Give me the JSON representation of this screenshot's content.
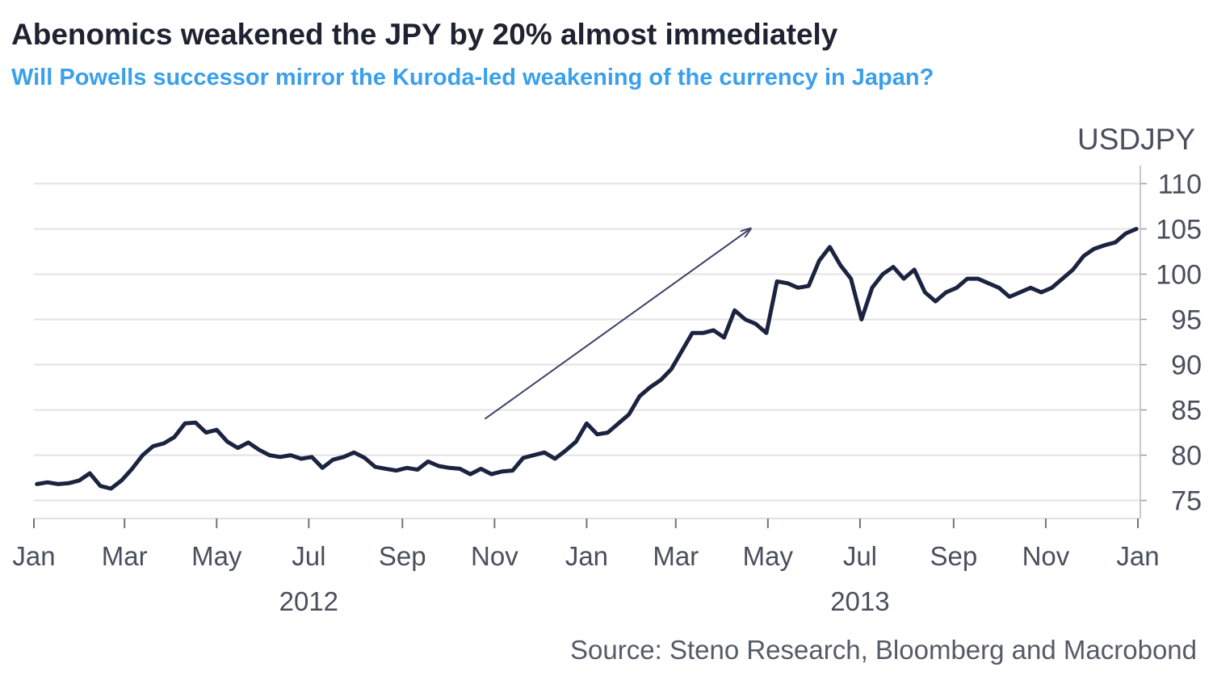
{
  "title": "Abenomics weakened the JPY by 20% almost immediately",
  "subtitle": "Will Powells successor mirror the Kuroda-led weakening of the currency in Japan?",
  "source": "Source: Steno Research, Bloomberg and Macrobond",
  "colors": {
    "line": "#1b2340",
    "grid": "#e3e3e6",
    "subtitle": "#3aa0ea",
    "arrow": "#3a4266"
  },
  "chart_data": {
    "type": "line",
    "unit_label": "USDJPY",
    "y_axis_position": "right",
    "ylim": [
      73,
      112
    ],
    "yticks": [
      75,
      80,
      85,
      90,
      95,
      100,
      105,
      110
    ],
    "grid": true,
    "xlim": [
      "2012-01-01",
      "2014-01-01"
    ],
    "x_ticks": [
      {
        "date": "2012-01-01",
        "label": "Jan"
      },
      {
        "date": "2012-03-01",
        "label": "Mar"
      },
      {
        "date": "2012-05-01",
        "label": "May"
      },
      {
        "date": "2012-07-01",
        "label": "Jul"
      },
      {
        "date": "2012-09-01",
        "label": "Sep"
      },
      {
        "date": "2012-11-01",
        "label": "Nov"
      },
      {
        "date": "2013-01-01",
        "label": "Jan"
      },
      {
        "date": "2013-03-01",
        "label": "Mar"
      },
      {
        "date": "2013-05-01",
        "label": "May"
      },
      {
        "date": "2013-07-01",
        "label": "Jul"
      },
      {
        "date": "2013-09-01",
        "label": "Sep"
      },
      {
        "date": "2013-11-01",
        "label": "Nov"
      },
      {
        "date": "2014-01-01",
        "label": "Jan"
      }
    ],
    "year_labels": [
      {
        "date": "2012-07-01",
        "label": "2012"
      },
      {
        "date": "2013-07-01",
        "label": "2013"
      }
    ],
    "annotation_arrow": {
      "from": [
        "2012-11-01",
        84
      ],
      "to": [
        "2013-05-01",
        105
      ]
    },
    "series": [
      {
        "x": [
          "2012-01-03",
          "2012-01-10",
          "2012-01-17",
          "2012-01-24",
          "2012-01-31",
          "2012-02-07",
          "2012-02-14",
          "2012-02-21",
          "2012-02-28",
          "2012-03-06",
          "2012-03-13",
          "2012-03-20",
          "2012-03-27",
          "2012-04-03",
          "2012-04-10",
          "2012-04-17",
          "2012-04-24",
          "2012-05-01",
          "2012-05-08",
          "2012-05-15",
          "2012-05-22",
          "2012-05-29",
          "2012-06-05",
          "2012-06-12",
          "2012-06-19",
          "2012-06-26",
          "2012-07-03",
          "2012-07-10",
          "2012-07-17",
          "2012-07-24",
          "2012-07-31",
          "2012-08-07",
          "2012-08-14",
          "2012-08-21",
          "2012-08-28",
          "2012-09-04",
          "2012-09-11",
          "2012-09-18",
          "2012-09-25",
          "2012-10-02",
          "2012-10-09",
          "2012-10-16",
          "2012-10-23",
          "2012-10-30",
          "2012-11-06",
          "2012-11-13",
          "2012-11-20",
          "2012-11-27",
          "2012-12-04",
          "2012-12-11",
          "2012-12-18",
          "2012-12-25",
          "2013-01-01",
          "2013-01-08",
          "2013-01-15",
          "2013-01-22",
          "2013-01-29",
          "2013-02-05",
          "2013-02-12",
          "2013-02-19",
          "2013-02-26",
          "2013-03-05",
          "2013-03-12",
          "2013-03-19",
          "2013-03-26",
          "2013-04-02",
          "2013-04-09",
          "2013-04-16",
          "2013-04-23",
          "2013-04-30",
          "2013-05-07",
          "2013-05-14",
          "2013-05-21",
          "2013-05-28",
          "2013-06-04",
          "2013-06-11",
          "2013-06-18",
          "2013-06-25",
          "2013-07-02",
          "2013-07-09",
          "2013-07-16",
          "2013-07-23",
          "2013-07-30",
          "2013-08-06",
          "2013-08-13",
          "2013-08-20",
          "2013-08-27",
          "2013-09-03",
          "2013-09-10",
          "2013-09-17",
          "2013-09-24",
          "2013-10-01",
          "2013-10-08",
          "2013-10-15",
          "2013-10-22",
          "2013-10-29",
          "2013-11-05",
          "2013-11-12",
          "2013-11-19",
          "2013-11-26",
          "2013-12-03",
          "2013-12-10",
          "2013-12-17",
          "2013-12-24",
          "2013-12-31"
        ],
        "y": [
          76.8,
          77.0,
          76.8,
          76.9,
          77.2,
          78.0,
          76.6,
          76.3,
          77.2,
          78.5,
          80.0,
          81.0,
          81.3,
          82.0,
          83.5,
          83.6,
          82.5,
          82.8,
          81.5,
          80.8,
          81.4,
          80.6,
          80.0,
          79.8,
          80.0,
          79.6,
          79.8,
          78.6,
          79.5,
          79.8,
          80.3,
          79.7,
          78.7,
          78.5,
          78.3,
          78.6,
          78.4,
          79.3,
          78.8,
          78.6,
          78.5,
          77.9,
          78.5,
          77.9,
          78.2,
          78.3,
          79.7,
          80.0,
          80.3,
          79.6,
          80.5,
          81.5,
          83.5,
          82.3,
          82.5,
          83.5,
          84.5,
          86.5,
          87.5,
          88.3,
          89.5,
          91.5,
          93.5,
          93.5,
          93.8,
          93.0,
          96.0,
          95.0,
          94.5,
          93.5,
          99.2,
          99.0,
          98.5,
          98.7,
          101.5,
          103.0,
          101.0,
          99.5,
          95.0,
          98.5,
          100.0,
          100.8,
          99.5,
          100.5,
          98.0,
          97.0,
          98.0,
          98.5,
          99.5,
          99.5,
          99.0,
          98.5,
          97.5,
          98.0,
          98.5,
          98.0,
          98.5,
          99.5,
          100.5,
          102.0,
          102.8,
          103.2,
          103.5,
          104.5,
          105.0
        ]
      }
    ]
  }
}
